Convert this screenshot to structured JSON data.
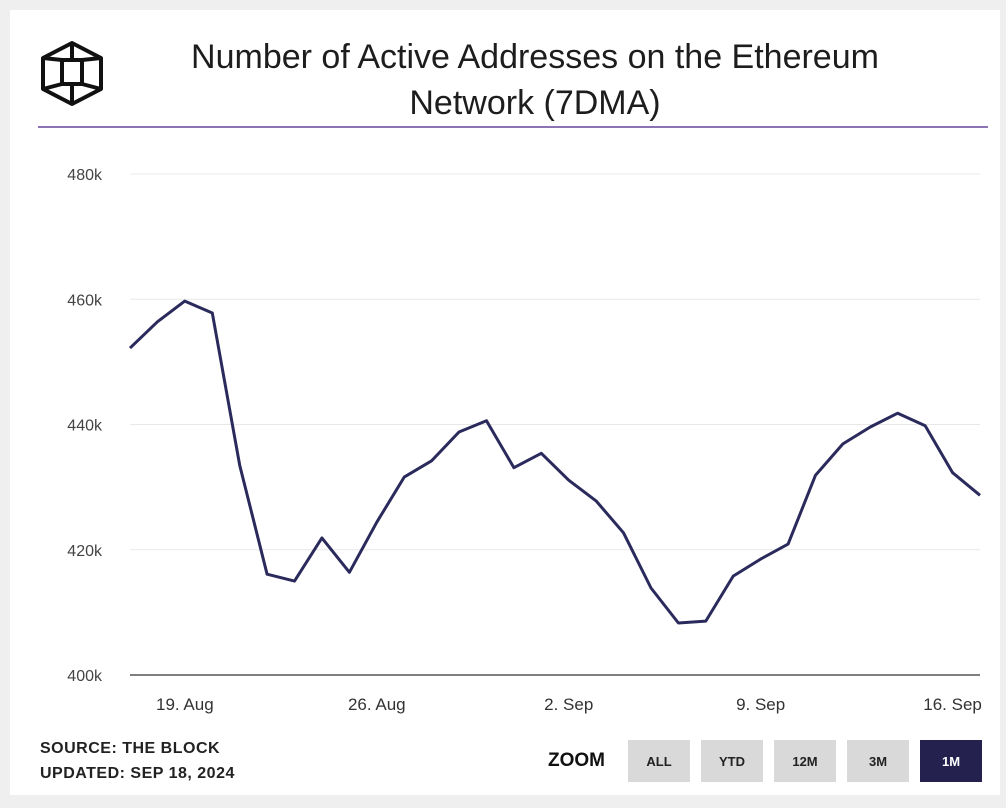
{
  "chart_data": {
    "type": "line",
    "title": "Number of Active Addresses on the Ethereum Network (7DMA)",
    "categories": [
      "17. Aug",
      "18. Aug",
      "19. Aug",
      "20. Aug",
      "21. Aug",
      "22. Aug",
      "23. Aug",
      "24. Aug",
      "25. Aug",
      "26. Aug",
      "27. Aug",
      "28. Aug",
      "29. Aug",
      "30. Aug",
      "31. Aug",
      "1. Sep",
      "2. Sep",
      "3. Sep",
      "4. Sep",
      "5. Sep",
      "6. Sep",
      "7. Sep",
      "8. Sep",
      "9. Sep",
      "10. Sep",
      "11. Sep",
      "12. Sep",
      "13. Sep",
      "14. Sep",
      "15. Sep",
      "16. Sep",
      "17. Sep"
    ],
    "xticks": [
      "19. Aug",
      "26. Aug",
      "2. Sep",
      "9. Sep",
      "16. Sep"
    ],
    "series": [
      {
        "name": "Active Addresses (7DMA)",
        "color": "#2b2a5c",
        "values": [
          452200,
          456400,
          459700,
          457800,
          433500,
          416100,
          415000,
          421900,
          416400,
          424400,
          431600,
          434200,
          438800,
          440600,
          433100,
          435400,
          431100,
          427800,
          422700,
          413900,
          408300,
          408600,
          415800,
          418500,
          420900,
          431900,
          436900,
          439600,
          441800,
          439800,
          432300,
          428700
        ]
      }
    ],
    "ylim": [
      400000,
      480000
    ],
    "yticks": [
      {
        "value": 400000,
        "label": "400k"
      },
      {
        "value": 420000,
        "label": "420k"
      },
      {
        "value": 440000,
        "label": "440k"
      },
      {
        "value": 460000,
        "label": "460k"
      },
      {
        "value": 480000,
        "label": "480k"
      }
    ],
    "grid": true,
    "source": "SOURCE: THE BLOCK",
    "updated": "UPDATED: SEP 18, 2024",
    "zoom_label": "ZOOM",
    "zoom_buttons": [
      "ALL",
      "YTD",
      "12M",
      "3M",
      "1M"
    ],
    "zoom_active": "1M"
  }
}
